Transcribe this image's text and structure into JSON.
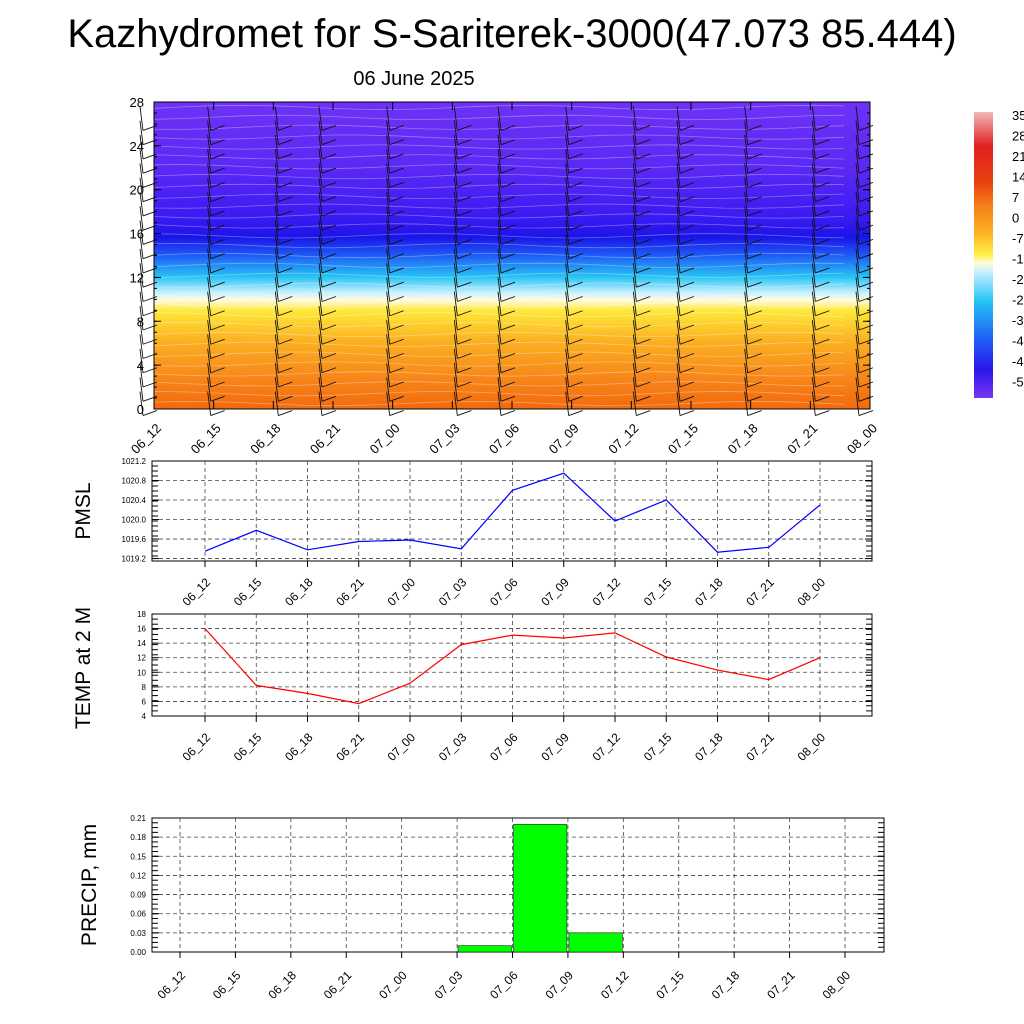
{
  "header": {
    "title": "Kazhydromet for S-Sariterek-3000(47.073 85.444)",
    "date": "06 June 2025"
  },
  "colors": {
    "pmsl_line": "#0000ff",
    "temp_line": "#ff0000",
    "precip_bar": "#00ff00",
    "frame": "#000000"
  },
  "chart_data": [
    {
      "type": "heatmap",
      "title": "",
      "xlabel": "",
      "ylabel": "",
      "categories": [
        "06_12",
        "06_15",
        "06_18",
        "06_21",
        "07_00",
        "07_03",
        "07_06",
        "07_09",
        "07_12",
        "07_15",
        "07_18",
        "07_21",
        "08_00"
      ],
      "y_ticks": [
        "0",
        "4",
        "8",
        "12",
        "16",
        "20",
        "24",
        "28"
      ],
      "ylim": [
        0,
        28
      ],
      "colorbar_labels": [
        "35",
        "28",
        "21",
        "14",
        "7",
        "0",
        "-7",
        "-1",
        "-2",
        "-2",
        "-3",
        "-4",
        "-4",
        "-5"
      ],
      "colormap": "blue-cyan-white-yellow-orange-red",
      "overlay": "wind barbs",
      "approx_temperature_profile": [
        {
          "level": 0,
          "value": 14
        },
        {
          "level": 4,
          "value": 10
        },
        {
          "level": 8,
          "value": 2
        },
        {
          "level": 11,
          "value": -5
        },
        {
          "level": 12,
          "value": -20
        },
        {
          "level": 14,
          "value": -35
        },
        {
          "level": 16,
          "value": -50
        },
        {
          "level": 18,
          "value": -55
        },
        {
          "level": 22,
          "value": -55
        },
        {
          "level": 28,
          "value": -50
        }
      ]
    },
    {
      "type": "line",
      "ylabel": "PMSL",
      "categories": [
        "06_12",
        "06_15",
        "06_18",
        "06_21",
        "07_00",
        "07_03",
        "07_06",
        "07_09",
        "07_12",
        "07_15",
        "07_18",
        "07_21",
        "08_00"
      ],
      "values": [
        1019.35,
        1019.78,
        1019.38,
        1019.55,
        1019.58,
        1019.4,
        1020.6,
        1020.95,
        1019.97,
        1020.4,
        1019.33,
        1019.43,
        1020.3
      ],
      "y_ticks": [
        "1019.2",
        "1019.6",
        "1020.0",
        "1020.4",
        "1020.8",
        "1021.2"
      ],
      "ylim": [
        1019.15,
        1021.2
      ],
      "grid": true
    },
    {
      "type": "line",
      "ylabel": "TEMP at 2 M",
      "categories": [
        "06_12",
        "06_15",
        "06_18",
        "06_21",
        "07_00",
        "07_03",
        "07_06",
        "07_09",
        "07_12",
        "07_15",
        "07_18",
        "07_21",
        "08_00"
      ],
      "values": [
        16.0,
        8.2,
        7.1,
        5.7,
        8.5,
        13.8,
        15.1,
        14.7,
        15.4,
        12.1,
        10.3,
        9.0,
        12.0
      ],
      "y_ticks": [
        "4",
        "6",
        "8",
        "10",
        "12",
        "14",
        "16",
        "18"
      ],
      "ylim": [
        4,
        18
      ],
      "grid": true
    },
    {
      "type": "bar",
      "ylabel": "PRECIP, mm",
      "categories": [
        "06_12",
        "06_15",
        "06_18",
        "06_21",
        "07_00",
        "07_03",
        "07_06",
        "07_09",
        "07_12",
        "07_15",
        "07_18",
        "07_21",
        "08_00"
      ],
      "values": [
        0,
        0,
        0,
        0,
        0,
        0,
        0.01,
        0.2,
        0.03,
        0,
        0,
        0,
        0
      ],
      "y_ticks": [
        "0.00",
        "0.03",
        "0.06",
        "0.09",
        "0.12",
        "0.15",
        "0.18",
        "0.21"
      ],
      "ylim": [
        0,
        0.21
      ],
      "grid": true
    }
  ]
}
